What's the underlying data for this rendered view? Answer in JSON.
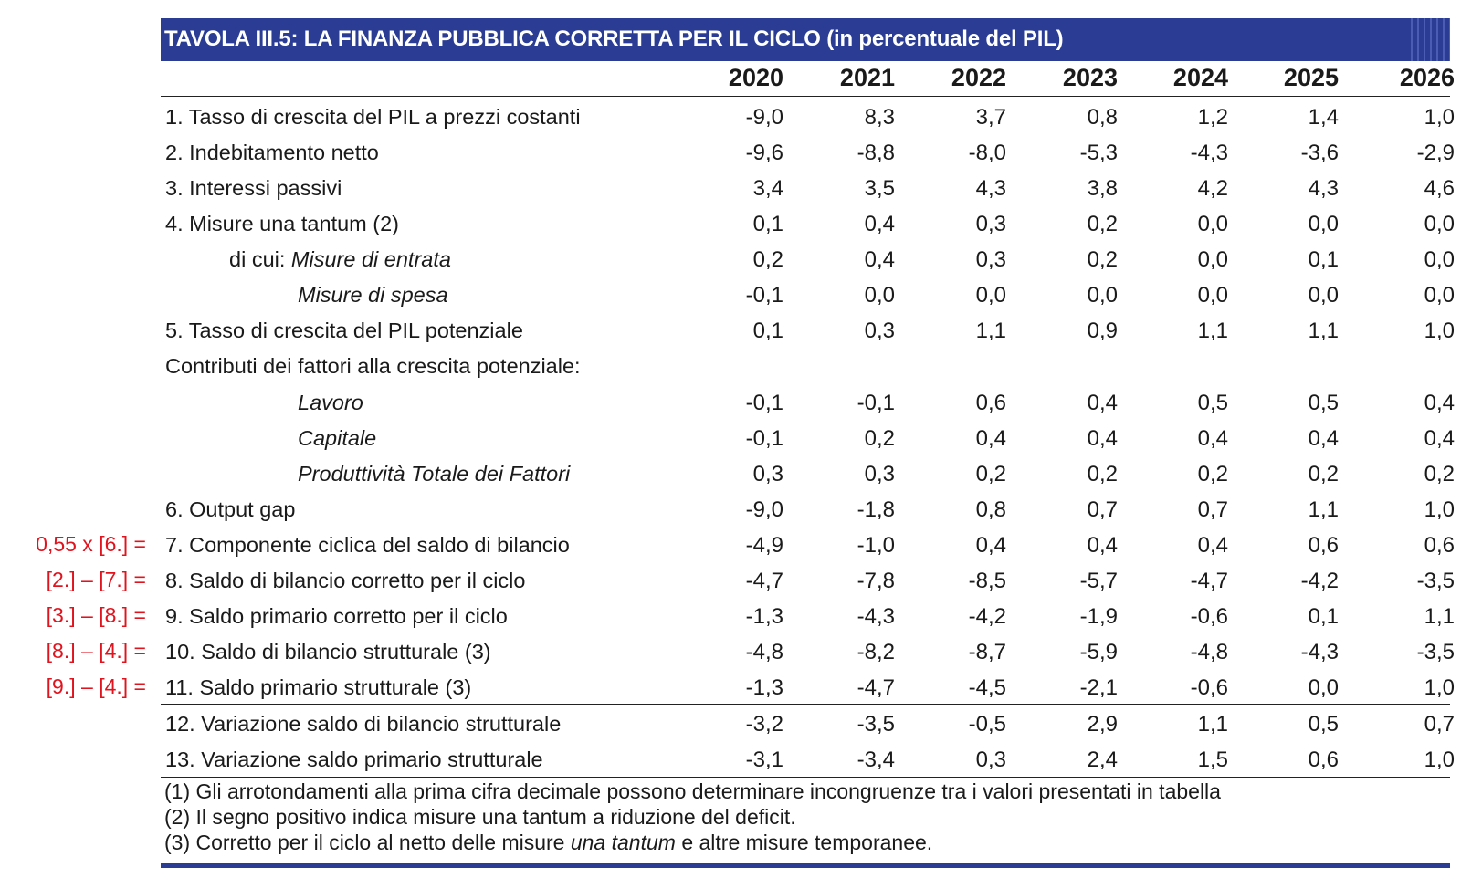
{
  "title": "TAVOLA III.5: LA FINANZA PUBBLICA CORRETTA PER IL CICLO (in percentuale del PIL)",
  "years": [
    "2020",
    "2021",
    "2022",
    "2023",
    "2024",
    "2025",
    "2026"
  ],
  "rows": [
    {
      "pre": "1. Tasso di crescita del PIL a prezzi costanti",
      "label": "",
      "formula": "",
      "indent": 0,
      "values": [
        "-9,0",
        "8,3",
        "3,7",
        "0,8",
        "1,2",
        "1,4",
        "1,0"
      ]
    },
    {
      "pre": "2. Indebitamento netto",
      "label": "",
      "formula": "",
      "indent": 0,
      "values": [
        "-9,6",
        "-8,8",
        "-8,0",
        "-5,3",
        "-4,3",
        "-3,6",
        "-2,9"
      ]
    },
    {
      "pre": "3. Interessi passivi",
      "label": "",
      "formula": "",
      "indent": 0,
      "values": [
        "3,4",
        "3,5",
        "4,3",
        "3,8",
        "4,2",
        "4,3",
        "4,6"
      ]
    },
    {
      "pre": "4. Misure una tantum (2)",
      "label": "",
      "formula": "",
      "indent": 0,
      "values": [
        "0,1",
        "0,4",
        "0,3",
        "0,2",
        "0,0",
        "0,0",
        "0,0"
      ]
    },
    {
      "pre": "di cui: ",
      "label": "Misure di entrata",
      "formula": "",
      "indent": 1,
      "values": [
        "0,2",
        "0,4",
        "0,3",
        "0,2",
        "0,0",
        "0,1",
        "0,0"
      ]
    },
    {
      "pre": "",
      "label": "Misure di spesa",
      "formula": "",
      "indent": 2,
      "values": [
        "-0,1",
        "0,0",
        "0,0",
        "0,0",
        "0,0",
        "0,0",
        "0,0"
      ]
    },
    {
      "pre": "5. Tasso di crescita del PIL potenziale",
      "label": "",
      "formula": "",
      "indent": 0,
      "values": [
        "0,1",
        "0,3",
        "1,1",
        "0,9",
        "1,1",
        "1,1",
        "1,0"
      ]
    },
    {
      "pre": "Contributi dei fattori alla crescita potenziale:",
      "label": "",
      "formula": "",
      "indent": 0,
      "values": [
        "",
        "",
        "",
        "",
        "",
        "",
        ""
      ]
    },
    {
      "pre": "",
      "label": "Lavoro",
      "formula": "",
      "indent": 2,
      "values": [
        "-0,1",
        "-0,1",
        "0,6",
        "0,4",
        "0,5",
        "0,5",
        "0,4"
      ]
    },
    {
      "pre": "",
      "label": "Capitale",
      "formula": "",
      "indent": 2,
      "values": [
        "-0,1",
        "0,2",
        "0,4",
        "0,4",
        "0,4",
        "0,4",
        "0,4"
      ]
    },
    {
      "pre": "",
      "label": "Produttività Totale dei Fattori",
      "formula": "",
      "indent": 2,
      "values": [
        "0,3",
        "0,3",
        "0,2",
        "0,2",
        "0,2",
        "0,2",
        "0,2"
      ]
    },
    {
      "pre": "6. Output gap",
      "label": "",
      "formula": "",
      "indent": 0,
      "values": [
        "-9,0",
        "-1,8",
        "0,8",
        "0,7",
        "0,7",
        "1,1",
        "1,0"
      ]
    },
    {
      "pre": "7. Componente ciclica del saldo di bilancio",
      "label": "",
      "formula": "0,55 x [6.] =",
      "indent": 0,
      "values": [
        "-4,9",
        "-1,0",
        "0,4",
        "0,4",
        "0,4",
        "0,6",
        "0,6"
      ]
    },
    {
      "pre": "8. Saldo di bilancio corretto per il ciclo",
      "label": "",
      "formula": "[2.] – [7.] =",
      "indent": 0,
      "values": [
        "-4,7",
        "-7,8",
        "-8,5",
        "-5,7",
        "-4,7",
        "-4,2",
        "-3,5"
      ]
    },
    {
      "pre": "9. Saldo primario corretto per il ciclo",
      "label": "",
      "formula": "[3.] – [8.] =",
      "indent": 0,
      "values": [
        "-1,3",
        "-4,3",
        "-4,2",
        "-1,9",
        "-0,6",
        "0,1",
        "1,1"
      ]
    },
    {
      "pre": "10. Saldo di bilancio strutturale (3)",
      "label": "",
      "formula": "[8.] – [4.] =",
      "indent": 0,
      "values": [
        "-4,8",
        "-8,2",
        "-8,7",
        "-5,9",
        "-4,8",
        "-4,3",
        "-3,5"
      ]
    },
    {
      "pre": "11. Saldo primario strutturale (3)",
      "label": "",
      "formula": "[9.] – [4.] =",
      "indent": 0,
      "values": [
        "-1,3",
        "-4,7",
        "-4,5",
        "-2,1",
        "-0,6",
        "0,0",
        "1,0"
      ]
    },
    {
      "pre": "12. Variazione saldo di bilancio strutturale",
      "label": "",
      "formula": "",
      "indent": 0,
      "values": [
        "-3,2",
        "-3,5",
        "-0,5",
        "2,9",
        "1,1",
        "0,5",
        "0,7"
      ]
    },
    {
      "pre": "13. Variazione saldo primario strutturale",
      "label": "",
      "formula": "",
      "indent": 0,
      "values": [
        "-3,1",
        "-3,4",
        "0,3",
        "2,4",
        "1,5",
        "0,6",
        "1,0"
      ]
    }
  ],
  "notes": [
    {
      "pre": "(1) Gli arrotondamenti alla prima cifra decimale possono determinare incongruenze tra i valori presentati in tabella",
      "it": "",
      "post": ""
    },
    {
      "pre": "(2) Il segno positivo indica misure una tantum a riduzione del deficit.",
      "it": "",
      "post": ""
    },
    {
      "pre": "(3) Corretto per il ciclo al netto delle misure ",
      "it": "una tantum",
      "post": " e altre misure temporanee."
    }
  ]
}
